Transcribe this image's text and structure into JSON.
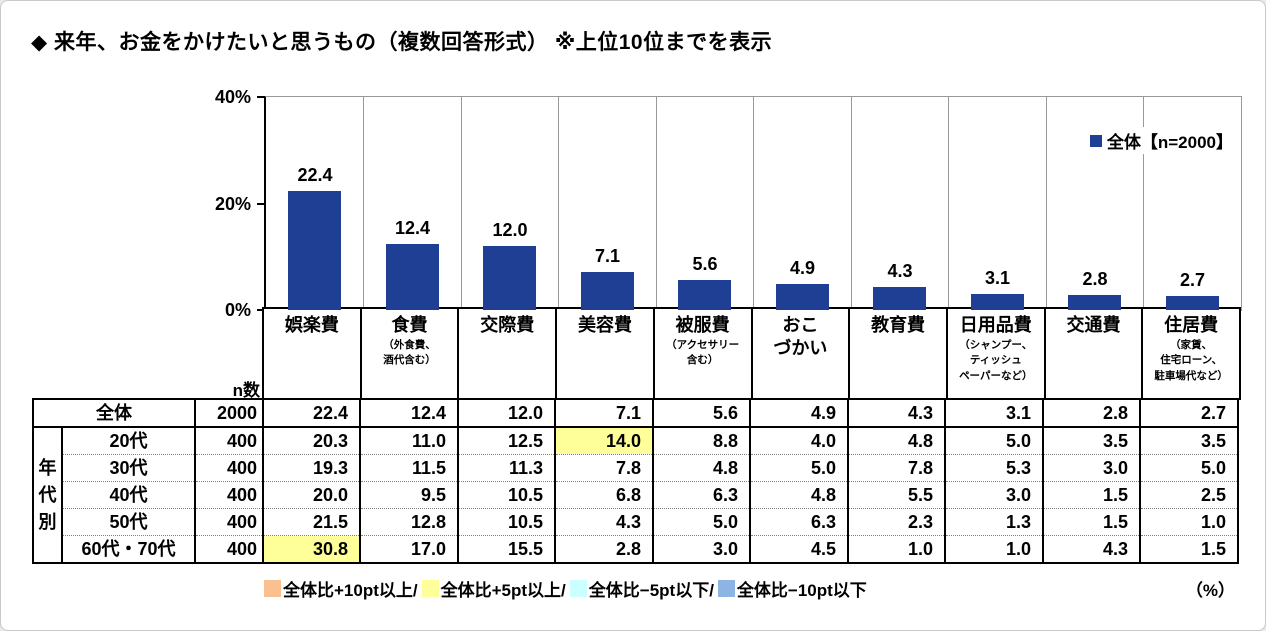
{
  "title": "◆ 来年、お金をかけたいと思うもの（複数回答形式） ※上位10位までを表示",
  "colors": {
    "bar": "#1F3F94",
    "highlight": "#FFFF99"
  },
  "chart_data": {
    "type": "bar",
    "title": "来年、お金をかけたいと思うもの（複数回答形式） 上位10位",
    "legend": "全体【n=2000】",
    "legend_position": "top-right",
    "ylim": [
      0,
      40
    ],
    "yticks": [
      0,
      20,
      40
    ],
    "ytick_suffix": "%",
    "grid": "vertical-separators",
    "categories": [
      {
        "label": "娯楽費",
        "note": ""
      },
      {
        "label": "食費",
        "note": "（外食費、\n酒代含む）"
      },
      {
        "label": "交際費",
        "note": ""
      },
      {
        "label": "美容費",
        "note": ""
      },
      {
        "label": "被服費",
        "note": "（アクセサリー\n含む）"
      },
      {
        "label": "おこ\nづかい",
        "note": ""
      },
      {
        "label": "教育費",
        "note": ""
      },
      {
        "label": "日用品費",
        "note": "（シャンプー、\nティッシュ\nペーパーなど）"
      },
      {
        "label": "交通費",
        "note": ""
      },
      {
        "label": "住居費",
        "note": "（家賃、\n住宅ローン、\n駐車場代など）"
      }
    ],
    "values": [
      22.4,
      12.4,
      12.0,
      7.1,
      5.6,
      4.9,
      4.3,
      3.1,
      2.8,
      2.7
    ]
  },
  "table": {
    "n_header": "n数",
    "group_label": "年代別",
    "rows": [
      {
        "label": "全体",
        "n": "2000",
        "values": [
          22.4,
          12.4,
          12.0,
          7.1,
          5.6,
          4.9,
          4.3,
          3.1,
          2.8,
          2.7
        ],
        "highlight": []
      },
      {
        "label": "20代",
        "n": "400",
        "values": [
          20.3,
          11.0,
          12.5,
          14.0,
          8.8,
          4.0,
          4.8,
          5.0,
          3.5,
          3.5
        ],
        "highlight": [
          3
        ]
      },
      {
        "label": "30代",
        "n": "400",
        "values": [
          19.3,
          11.5,
          11.3,
          7.8,
          4.8,
          5.0,
          7.8,
          5.3,
          3.0,
          5.0
        ],
        "highlight": []
      },
      {
        "label": "40代",
        "n": "400",
        "values": [
          20.0,
          9.5,
          10.5,
          6.8,
          6.3,
          4.8,
          5.5,
          3.0,
          1.5,
          2.5
        ],
        "highlight": []
      },
      {
        "label": "50代",
        "n": "400",
        "values": [
          21.5,
          12.8,
          10.5,
          4.3,
          5.0,
          6.3,
          2.3,
          1.3,
          1.5,
          1.0
        ],
        "highlight": []
      },
      {
        "label": "60代・70代",
        "n": "400",
        "values": [
          30.8,
          17.0,
          15.5,
          2.8,
          3.0,
          4.5,
          1.0,
          1.0,
          4.3,
          1.5
        ],
        "highlight": [
          0
        ]
      }
    ]
  },
  "footer": {
    "items": [
      {
        "color": "#FAC090",
        "label": "全体比+10pt以上/"
      },
      {
        "color": "#FFFF99",
        "label": "全体比+5pt以上/"
      },
      {
        "color": "#CCFFFF",
        "label": "全体比−5pt以下/"
      },
      {
        "color": "#8DB4E2",
        "label": "全体比−10pt以下"
      }
    ],
    "unit": "（%）"
  }
}
